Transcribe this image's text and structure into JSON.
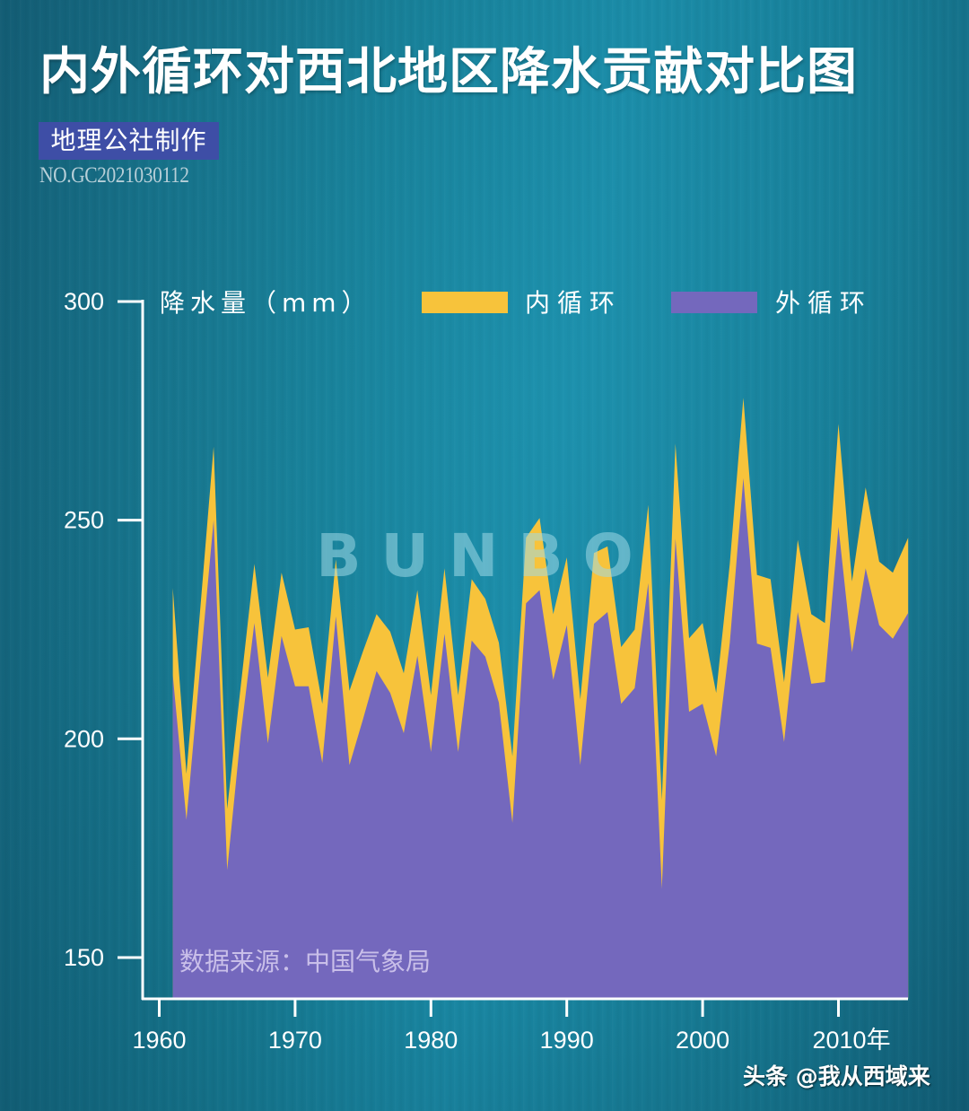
{
  "header": {
    "title": "内外循环对西北地区降水贡献对比图",
    "badge": "地理公社制作",
    "serial": "NO.GC2021030112"
  },
  "colors": {
    "inner": "#f7c33b",
    "outer": "#7468bd",
    "axis": "#ffffff",
    "badge": "#3e4ea6"
  },
  "watermark": "BUNBO",
  "source_note": "数据来源：中国气象局",
  "credit": "头条 @我从西域来",
  "chart_data": {
    "type": "area",
    "stacked": true,
    "title": "内外循环对西北地区降水贡献对比图",
    "xlabel": "",
    "ylabel": "降水量（mm）",
    "ylim": [
      140,
      300
    ],
    "xlim": [
      1960,
      2015
    ],
    "yticks": [
      150,
      200,
      250,
      300
    ],
    "xticks": [
      1960,
      1970,
      1980,
      1990,
      2000,
      2010
    ],
    "xtick_labels": [
      "1960",
      "1970",
      "1980",
      "1990",
      "2000",
      "2010年"
    ],
    "grid": false,
    "legend": {
      "position": "top",
      "entries": [
        {
          "label": "内循环",
          "color": "#f7c33b"
        },
        {
          "label": "外循环",
          "color": "#7468bd"
        }
      ]
    },
    "x": [
      1961,
      1962,
      1963,
      1964,
      1965,
      1966,
      1967,
      1968,
      1969,
      1970,
      1971,
      1972,
      1973,
      1974,
      1975,
      1976,
      1977,
      1978,
      1979,
      1980,
      1981,
      1982,
      1983,
      1984,
      1985,
      1986,
      1987,
      1988,
      1989,
      1990,
      1991,
      1992,
      1993,
      1994,
      1995,
      1996,
      1997,
      1998,
      1999,
      2000,
      2001,
      2002,
      2003,
      2004,
      2005,
      2006,
      2007,
      2008,
      2009,
      2010,
      2011,
      2012,
      2013,
      2014,
      2015
    ],
    "series": [
      {
        "name": "外循环",
        "values": [
          214.5,
          181.5,
          216,
          250,
          170,
          201,
          226.5,
          199,
          223.5,
          212,
          212,
          194.5,
          228,
          194,
          204.5,
          215.5,
          210.5,
          201.3,
          219,
          197,
          224,
          197,
          222.5,
          218.8,
          208.3,
          180.8,
          231,
          234,
          213.5,
          226,
          194,
          226.3,
          229,
          208,
          211.6,
          235.6,
          165.8,
          245.8,
          206.2,
          208,
          196,
          222,
          259.6,
          221.8,
          220.8,
          199.3,
          229,
          212.6,
          213,
          248.5,
          219.8,
          239,
          226,
          222.9,
          228.8
        ]
      },
      {
        "name": "内循环",
        "values": [
          20,
          10.5,
          13,
          16.8,
          14,
          11,
          13.5,
          15,
          14.5,
          13,
          13.5,
          13.5,
          13,
          17,
          15.5,
          13,
          14,
          13.7,
          15,
          13,
          15,
          13,
          14,
          13.2,
          13.7,
          15.2,
          15,
          16.5,
          15,
          15.5,
          15,
          16.2,
          15,
          13,
          13.4,
          17.9,
          20.2,
          21.7,
          16.8,
          18.5,
          14.5,
          18,
          18.4,
          15.7,
          15.7,
          13.7,
          16.5,
          15.9,
          13.5,
          23.5,
          16.2,
          18.5,
          14.5,
          15.1,
          17.2
        ]
      }
    ],
    "totals": [
      234.5,
      192,
      229,
      266.8,
      184,
      212,
      240,
      214,
      238,
      225,
      225.5,
      208,
      241,
      211,
      220,
      228.5,
      224.5,
      215,
      234,
      210,
      239,
      210,
      236.5,
      232,
      222,
      196,
      246,
      250.5,
      228.5,
      241.5,
      209,
      242.5,
      244,
      221,
      225,
      253.5,
      186,
      267.5,
      223,
      226.5,
      210.5,
      240,
      278,
      237.5,
      236.5,
      213,
      245.5,
      228.5,
      226.5,
      272,
      236,
      257.5,
      240.5,
      238,
      246
    ]
  }
}
